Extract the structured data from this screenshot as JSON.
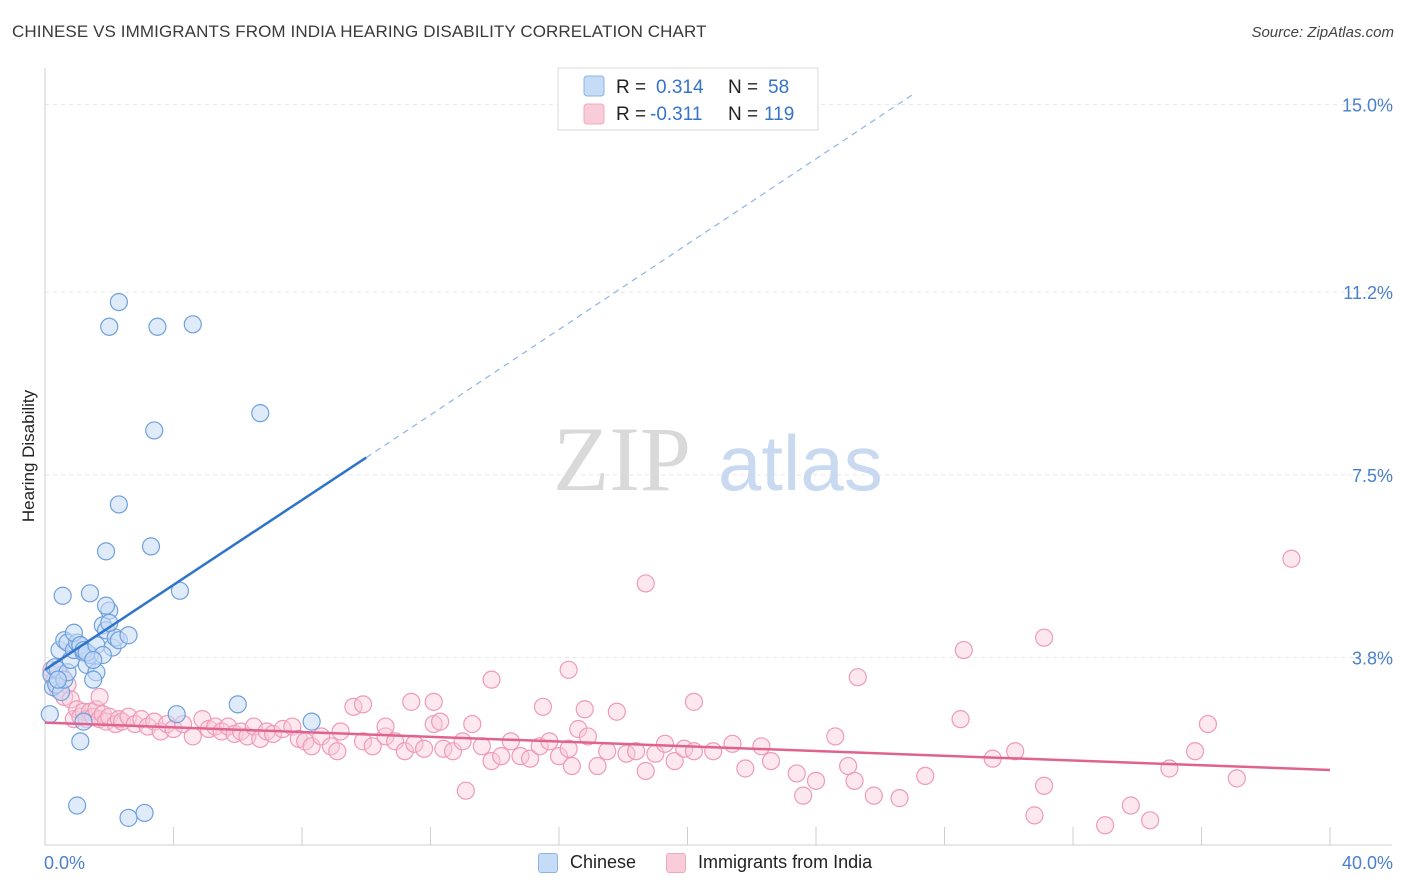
{
  "title": "CHINESE VS IMMIGRANTS FROM INDIA HEARING DISABILITY CORRELATION CHART",
  "source": "Source: ZipAtlas.com",
  "watermark": {
    "zip": "ZIP",
    "atlas": "atlas"
  },
  "colors": {
    "blue": "#8cb4e8",
    "blue_line": "#2f74c8",
    "pink": "#f1a7c1",
    "pink_line": "#e0638f",
    "tick_text": "#4a7fcc"
  },
  "legend": {
    "rows": [
      {
        "r_label": "R = ",
        "r_value": "0.314",
        "n_label": "N = ",
        "n_value": "58"
      },
      {
        "r_label": "R = ",
        "r_value": "-0.311",
        "n_label": "N = ",
        "n_value": "119"
      }
    ]
  },
  "bottom_legend": [
    "Chinese",
    "Immigrants from India"
  ],
  "chart_data": {
    "type": "scatter",
    "title": "CHINESE VS IMMIGRANTS FROM INDIA HEARING DISABILITY CORRELATION CHART",
    "xlabel": "",
    "ylabel": "Hearing Disability",
    "xlim": [
      0,
      40
    ],
    "ylim": [
      0,
      15.5
    ],
    "x_tick_labels": [
      "0.0%",
      "40.0%"
    ],
    "y_ticks": [
      3.8,
      7.5,
      11.2,
      15.0
    ],
    "y_tick_labels": [
      "3.8%",
      "7.5%",
      "11.2%",
      "15.0%"
    ],
    "series": [
      {
        "name": "Chinese",
        "r": 0.314,
        "n": 58,
        "trend": {
          "x0": 0,
          "y0": 3.55,
          "x1": 10.0,
          "y1": 7.85,
          "dash_to_x": 27.0,
          "dash_to_y": 15.2
        },
        "points": [
          [
            0.15,
            2.65
          ],
          [
            0.2,
            3.45
          ],
          [
            0.25,
            3.2
          ],
          [
            0.3,
            3.6
          ],
          [
            0.35,
            3.25
          ],
          [
            0.4,
            3.55
          ],
          [
            0.45,
            3.95
          ],
          [
            0.5,
            3.1
          ],
          [
            0.6,
            3.35
          ],
          [
            0.7,
            3.5
          ],
          [
            0.6,
            4.15
          ],
          [
            0.7,
            4.1
          ],
          [
            0.8,
            3.75
          ],
          [
            0.9,
            3.95
          ],
          [
            1.0,
            4.1
          ],
          [
            1.1,
            4.05
          ],
          [
            1.2,
            3.9
          ],
          [
            1.3,
            3.65
          ],
          [
            1.4,
            3.85
          ],
          [
            1.6,
            3.5
          ],
          [
            0.9,
            4.3
          ],
          [
            1.1,
            4.05
          ],
          [
            1.2,
            3.95
          ],
          [
            1.3,
            3.9
          ],
          [
            1.5,
            3.35
          ],
          [
            1.6,
            4.05
          ],
          [
            1.8,
            4.45
          ],
          [
            1.9,
            4.35
          ],
          [
            2.0,
            4.75
          ],
          [
            2.1,
            4.0
          ],
          [
            2.2,
            4.2
          ],
          [
            2.3,
            4.15
          ],
          [
            2.6,
            4.25
          ],
          [
            0.55,
            5.05
          ],
          [
            1.4,
            5.1
          ],
          [
            1.9,
            5.95
          ],
          [
            2.3,
            6.9
          ],
          [
            3.3,
            6.05
          ],
          [
            4.2,
            5.15
          ],
          [
            1.8,
            3.85
          ],
          [
            1.9,
            4.85
          ],
          [
            2.0,
            4.5
          ],
          [
            1.5,
            3.75
          ],
          [
            1.2,
            2.5
          ],
          [
            1.1,
            2.1
          ],
          [
            1.0,
            0.8
          ],
          [
            2.6,
            0.55
          ],
          [
            3.1,
            0.65
          ],
          [
            4.1,
            2.65
          ],
          [
            6.0,
            2.85
          ],
          [
            8.3,
            2.5
          ],
          [
            2.0,
            10.5
          ],
          [
            2.3,
            11.0
          ],
          [
            3.5,
            10.5
          ],
          [
            4.6,
            10.55
          ],
          [
            3.4,
            8.4
          ],
          [
            6.7,
            8.75
          ],
          [
            0.4,
            3.35
          ]
        ]
      },
      {
        "name": "Immigrants from India",
        "r": -0.311,
        "n": 119,
        "trend": {
          "x0": 0,
          "y0": 2.48,
          "x1": 40,
          "y1": 1.52
        },
        "points": [
          [
            0.2,
            3.55
          ],
          [
            0.3,
            3.35
          ],
          [
            0.4,
            3.15
          ],
          [
            0.5,
            3.45
          ],
          [
            0.6,
            3.0
          ],
          [
            0.7,
            3.25
          ],
          [
            0.8,
            2.95
          ],
          [
            0.9,
            2.55
          ],
          [
            1.0,
            2.75
          ],
          [
            1.1,
            2.6
          ],
          [
            1.2,
            2.7
          ],
          [
            1.3,
            2.55
          ],
          [
            1.4,
            2.7
          ],
          [
            1.5,
            2.6
          ],
          [
            1.6,
            2.75
          ],
          [
            1.7,
            2.55
          ],
          [
            1.8,
            2.65
          ],
          [
            1.9,
            2.5
          ],
          [
            2.0,
            2.6
          ],
          [
            2.2,
            2.45
          ],
          [
            2.3,
            2.55
          ],
          [
            2.4,
            2.5
          ],
          [
            2.6,
            2.6
          ],
          [
            2.8,
            2.45
          ],
          [
            3.0,
            2.55
          ],
          [
            3.2,
            2.4
          ],
          [
            3.4,
            2.5
          ],
          [
            3.6,
            2.3
          ],
          [
            3.8,
            2.45
          ],
          [
            4.0,
            2.35
          ],
          [
            4.3,
            2.45
          ],
          [
            4.6,
            2.2
          ],
          [
            4.9,
            2.55
          ],
          [
            5.1,
            2.35
          ],
          [
            5.3,
            2.4
          ],
          [
            5.5,
            2.3
          ],
          [
            5.7,
            2.4
          ],
          [
            5.9,
            2.25
          ],
          [
            6.1,
            2.3
          ],
          [
            6.3,
            2.2
          ],
          [
            6.5,
            2.4
          ],
          [
            6.7,
            2.15
          ],
          [
            6.9,
            2.3
          ],
          [
            7.1,
            2.25
          ],
          [
            7.4,
            2.35
          ],
          [
            7.7,
            2.4
          ],
          [
            7.9,
            2.15
          ],
          [
            8.1,
            2.1
          ],
          [
            8.3,
            2.0
          ],
          [
            8.6,
            2.2
          ],
          [
            8.9,
            2.0
          ],
          [
            9.2,
            2.3
          ],
          [
            9.6,
            2.8
          ],
          [
            9.9,
            2.1
          ],
          [
            10.2,
            2.0
          ],
          [
            10.6,
            2.2
          ],
          [
            10.9,
            2.1
          ],
          [
            11.2,
            1.9
          ],
          [
            11.5,
            2.05
          ],
          [
            11.8,
            1.95
          ],
          [
            12.1,
            2.45
          ],
          [
            12.4,
            1.95
          ],
          [
            12.7,
            1.9
          ],
          [
            13.0,
            2.1
          ],
          [
            13.3,
            2.45
          ],
          [
            13.6,
            2.0
          ],
          [
            13.9,
            1.7
          ],
          [
            14.2,
            1.8
          ],
          [
            14.5,
            2.1
          ],
          [
            14.8,
            1.8
          ],
          [
            15.1,
            1.75
          ],
          [
            15.4,
            2.0
          ],
          [
            15.7,
            2.1
          ],
          [
            16.0,
            1.8
          ],
          [
            16.3,
            1.95
          ],
          [
            16.6,
            2.35
          ],
          [
            16.9,
            2.2
          ],
          [
            17.2,
            1.6
          ],
          [
            17.5,
            1.9
          ],
          [
            17.8,
            2.7
          ],
          [
            18.1,
            1.85
          ],
          [
            18.4,
            1.9
          ],
          [
            18.7,
            1.5
          ],
          [
            19.0,
            1.85
          ],
          [
            19.3,
            2.05
          ],
          [
            19.6,
            1.7
          ],
          [
            19.9,
            1.95
          ],
          [
            20.2,
            1.9
          ],
          [
            20.8,
            1.9
          ],
          [
            21.4,
            2.05
          ],
          [
            21.8,
            1.55
          ],
          [
            22.3,
            2.0
          ],
          [
            22.6,
            1.7
          ],
          [
            23.4,
            1.45
          ],
          [
            24.0,
            1.3
          ],
          [
            24.6,
            2.2
          ],
          [
            25.2,
            1.3
          ],
          [
            25.8,
            1.0
          ],
          [
            26.6,
            0.95
          ],
          [
            27.4,
            1.4
          ],
          [
            28.5,
            2.55
          ],
          [
            29.5,
            1.75
          ],
          [
            30.2,
            1.9
          ],
          [
            30.8,
            0.6
          ],
          [
            31.1,
            1.2
          ],
          [
            33.0,
            0.4
          ],
          [
            33.8,
            0.8
          ],
          [
            34.4,
            0.5
          ],
          [
            35.0,
            1.55
          ],
          [
            35.8,
            1.9
          ],
          [
            36.2,
            2.45
          ],
          [
            37.1,
            1.35
          ],
          [
            38.8,
            5.8
          ],
          [
            11.4,
            2.9
          ],
          [
            12.1,
            2.9
          ],
          [
            15.5,
            2.8
          ],
          [
            16.8,
            2.75
          ],
          [
            20.2,
            2.9
          ],
          [
            9.9,
            2.85
          ],
          [
            12.3,
            2.5
          ],
          [
            9.1,
            1.9
          ],
          [
            10.6,
            2.4
          ],
          [
            1.7,
            3.0
          ]
        ]
      },
      {
        "name": "Immigrants from India (outliers)",
        "points": [
          [
            18.7,
            5.3
          ],
          [
            13.9,
            3.35
          ],
          [
            16.3,
            3.55
          ],
          [
            25.3,
            3.4
          ],
          [
            28.6,
            3.95
          ],
          [
            31.1,
            4.2
          ],
          [
            25.0,
            1.6
          ],
          [
            13.1,
            1.1
          ],
          [
            23.6,
            1.0
          ],
          [
            16.4,
            1.6
          ]
        ]
      }
    ]
  }
}
